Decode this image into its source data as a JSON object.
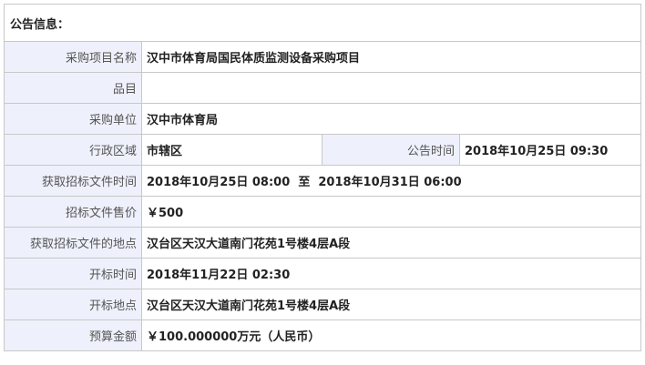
{
  "header": "公告信息：",
  "rows": [
    {
      "label": "采购项目名称",
      "value": "汉中市体育局国民体质监测设备采购项目"
    },
    {
      "label": "品目",
      "value": ""
    },
    {
      "label": "采购单位",
      "value": "汉中市体育局"
    },
    {
      "label": "行政区域",
      "value": "市辖区",
      "label2": "公告时间",
      "value2": "2018年10月25日 09:30"
    },
    {
      "label": "获取招标文件时间",
      "value": "2018年10月25日 08:00  至  2018年10月31日 06:00"
    },
    {
      "label": "招标文件售价",
      "value": "￥500"
    },
    {
      "label": "获取招标文件的地点",
      "value": "汉台区天汉大道南门花苑1号楼4层A段"
    },
    {
      "label": "开标时间",
      "value": "2018年11月22日 02:30"
    },
    {
      "label": "开标地点",
      "value": "汉台区天汉大道南门花苑1号楼4层A段"
    },
    {
      "label": "预算金额",
      "value": "￥100.000000万元（人民币）"
    }
  ]
}
